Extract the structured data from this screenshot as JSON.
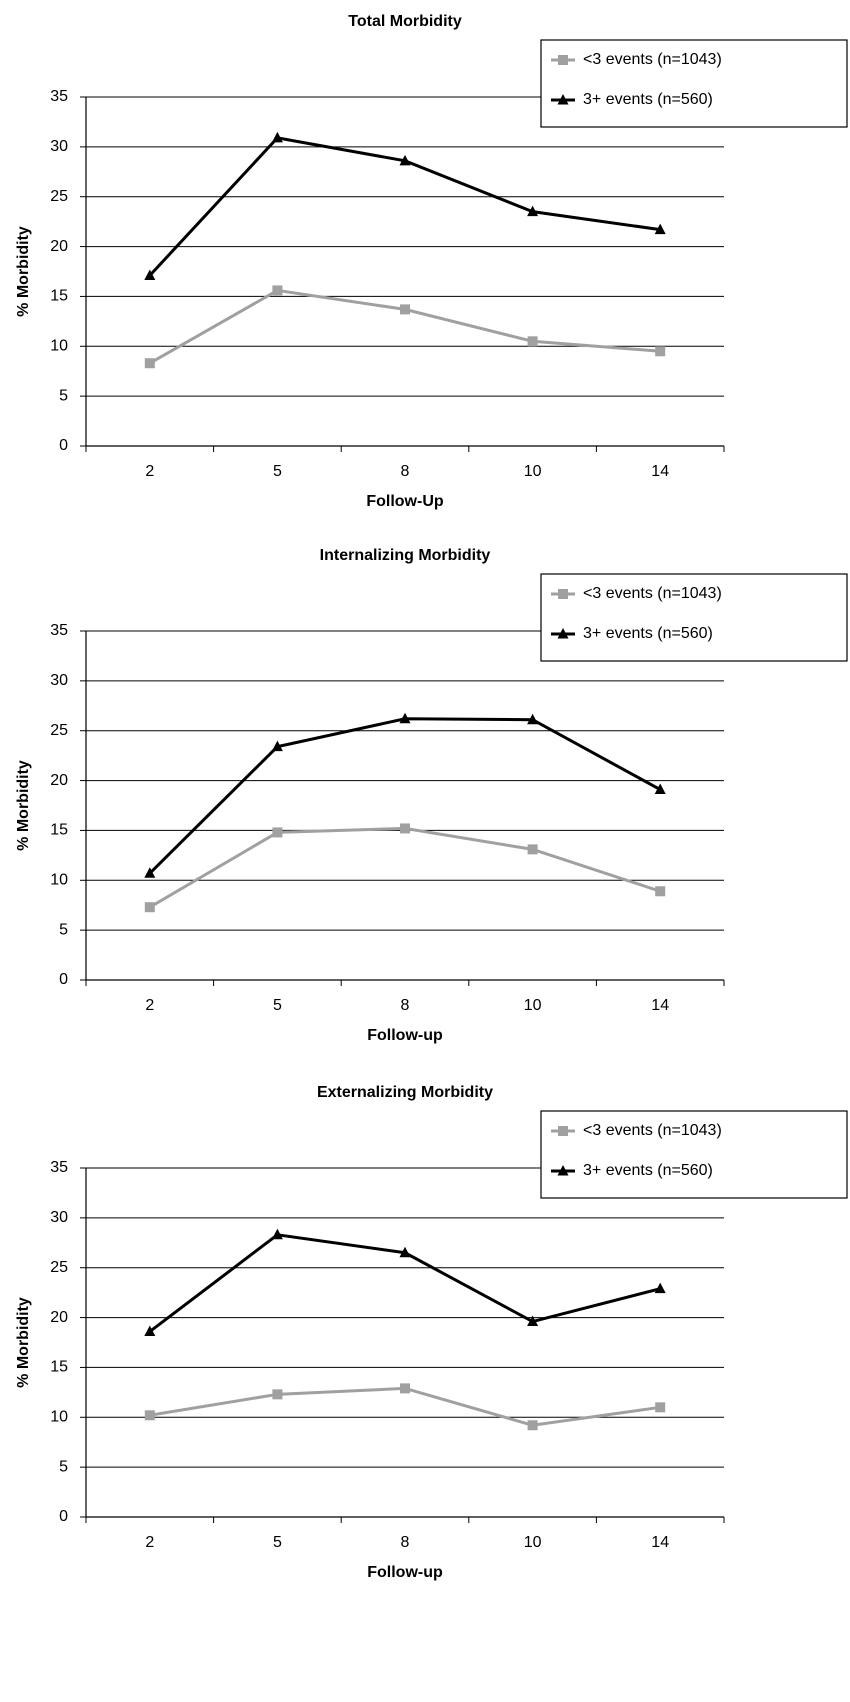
{
  "chart_data": [
    {
      "type": "line",
      "title": "Total Morbidity",
      "x_label": "Follow-Up",
      "y_label": "% Morbidity",
      "categories": [
        "2",
        "5",
        "8",
        "10",
        "14"
      ],
      "series": [
        {
          "name": "<3 events (n=1043)",
          "color": "#a0a0a0",
          "marker": "square",
          "values": [
            8.3,
            15.6,
            13.7,
            10.5,
            9.5
          ]
        },
        {
          "name": "3+ events (n=560)",
          "color": "#000000",
          "marker": "triangle",
          "values": [
            17.1,
            30.9,
            28.6,
            23.5,
            21.7
          ]
        }
      ],
      "ylim": [
        0,
        35
      ],
      "yticks": [
        0,
        5,
        10,
        15,
        20,
        25,
        30,
        35
      ],
      "grid": true,
      "legend": "top-right"
    },
    {
      "type": "line",
      "title": "Internalizing Morbidity",
      "x_label": "Follow-up",
      "y_label": "% Morbidity",
      "categories": [
        "2",
        "5",
        "8",
        "10",
        "14"
      ],
      "series": [
        {
          "name": "<3 events (n=1043)",
          "color": "#a0a0a0",
          "marker": "square",
          "values": [
            7.3,
            14.8,
            15.2,
            13.1,
            8.9
          ]
        },
        {
          "name": "3+ events (n=560)",
          "color": "#000000",
          "marker": "triangle",
          "values": [
            10.7,
            23.4,
            26.2,
            26.1,
            19.1
          ]
        }
      ],
      "ylim": [
        0,
        35
      ],
      "yticks": [
        0,
        5,
        10,
        15,
        20,
        25,
        30,
        35
      ],
      "grid": true,
      "legend": "top-right"
    },
    {
      "type": "line",
      "title": "Externalizing Morbidity",
      "x_label": "Follow-up",
      "y_label": "% Morbidity",
      "categories": [
        "2",
        "5",
        "8",
        "10",
        "14"
      ],
      "series": [
        {
          "name": "<3 events (n=1043)",
          "color": "#a0a0a0",
          "marker": "square",
          "values": [
            10.2,
            12.3,
            12.9,
            9.2,
            11.0
          ]
        },
        {
          "name": "3+ events (n=560)",
          "color": "#000000",
          "marker": "triangle",
          "values": [
            18.6,
            28.3,
            26.5,
            19.6,
            22.9
          ]
        }
      ],
      "ylim": [
        0,
        35
      ],
      "yticks": [
        0,
        5,
        10,
        15,
        20,
        25,
        30,
        35
      ],
      "grid": true,
      "legend": "top-right"
    }
  ]
}
